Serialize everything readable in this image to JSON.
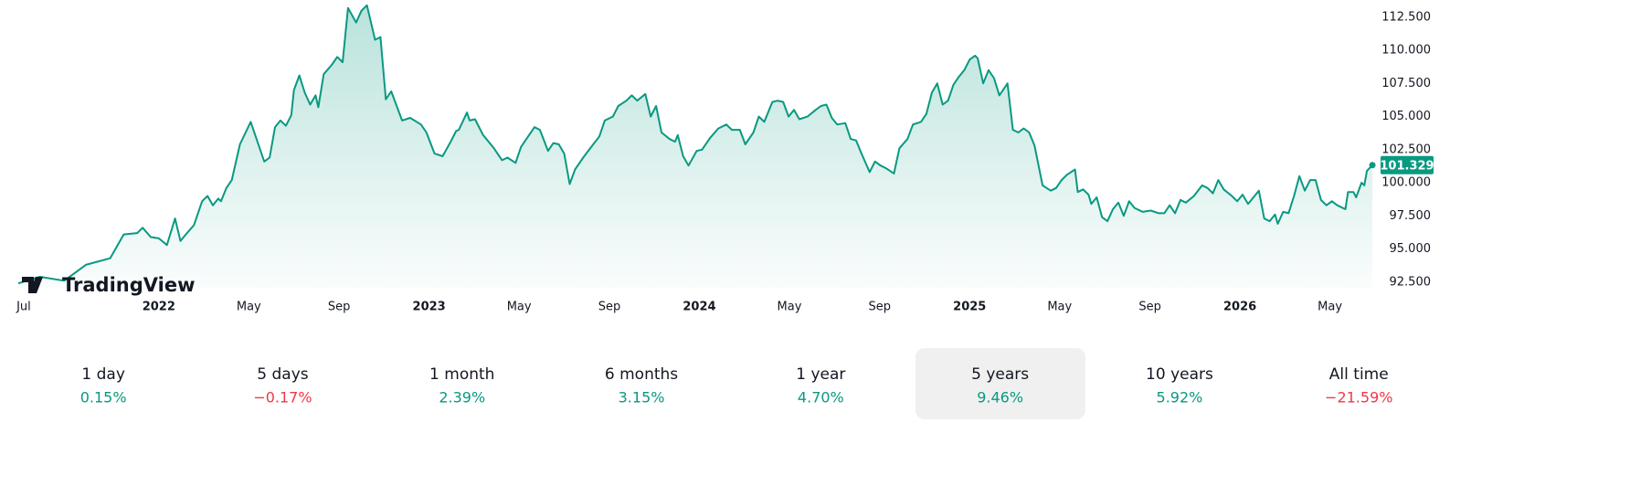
{
  "chart_data": {
    "type": "area",
    "logo": "TradingView",
    "xlim": [
      2021.48,
      2026.5
    ],
    "ylim": [
      92,
      113.8
    ],
    "grid": false,
    "xticks": [
      {
        "value": 2021.5,
        "label": "Jul"
      },
      2022,
      {
        "value": 2022.333,
        "label": "May"
      },
      {
        "value": 2022.667,
        "label": "Sep"
      },
      2023,
      {
        "value": 2023.333,
        "label": "May"
      },
      {
        "value": 2023.667,
        "label": "Sep"
      },
      2024,
      {
        "value": 2024.333,
        "label": "May"
      },
      {
        "value": 2024.667,
        "label": "Sep"
      },
      2025,
      {
        "value": 2025.333,
        "label": "May"
      },
      {
        "value": 2025.667,
        "label": "Sep"
      },
      2026,
      {
        "value": 2026.333,
        "label": "May"
      }
    ],
    "yticks": [
      {
        "value": 92.5,
        "label": "92.500"
      },
      {
        "value": 95,
        "label": "95.000"
      },
      {
        "value": 97.5,
        "label": "97.500"
      },
      {
        "value": 100,
        "label": "100.000"
      },
      {
        "value": 102.5,
        "label": "102.500"
      },
      {
        "value": 105,
        "label": "105.000"
      },
      {
        "value": 107.5,
        "label": "107.500"
      },
      {
        "value": 110,
        "label": "110.000"
      },
      {
        "value": 112.5,
        "label": "112.500"
      }
    ],
    "series": [
      {
        "color": "#089981",
        "x": [
          2021.48,
          2021.56,
          2021.65,
          2021.73,
          2021.82,
          2021.87,
          2021.92,
          2021.94,
          2021.97,
          2022,
          2022.03,
          2022.06,
          2022.08,
          2022.1,
          2022.13,
          2022.16,
          2022.18,
          2022.2,
          2022.22,
          2022.23,
          2022.25,
          2022.27,
          2022.3,
          2022.34,
          2022.39,
          2022.41,
          2022.43,
          2022.45,
          2022.47,
          2022.49,
          2022.5,
          2022.52,
          2022.54,
          2022.56,
          2022.58,
          2022.59,
          2022.61,
          2022.64,
          2022.66,
          2022.68,
          2022.7,
          2022.73,
          2022.75,
          2022.77,
          2022.8,
          2022.82,
          2022.84,
          2022.86,
          2022.9,
          2022.93,
          2022.97,
          2022.99,
          2023.02,
          2023.05,
          2023.08,
          2023.1,
          2023.11,
          2023.14,
          2023.15,
          2023.17,
          2023.2,
          2023.24,
          2023.27,
          2023.29,
          2023.32,
          2023.34,
          2023.36,
          2023.39,
          2023.41,
          2023.44,
          2023.46,
          2023.48,
          2023.5,
          2023.52,
          2023.54,
          2023.57,
          2023.6,
          2023.63,
          2023.65,
          2023.68,
          2023.7,
          2023.73,
          2023.75,
          2023.77,
          2023.8,
          2023.82,
          2023.84,
          2023.86,
          2023.89,
          2023.91,
          2023.92,
          2023.94,
          2023.96,
          2023.99,
          2024.01,
          2024.04,
          2024.07,
          2024.1,
          2024.12,
          2024.15,
          2024.17,
          2024.2,
          2024.22,
          2024.24,
          2024.27,
          2024.29,
          2024.31,
          2024.33,
          2024.35,
          2024.37,
          2024.4,
          2024.43,
          2024.45,
          2024.47,
          2024.49,
          2024.51,
          2024.54,
          2024.56,
          2024.58,
          2024.6,
          2024.63,
          2024.65,
          2024.67,
          2024.69,
          2024.72,
          2024.74,
          2024.77,
          2024.79,
          2024.82,
          2024.84,
          2024.86,
          2024.88,
          2024.9,
          2024.92,
          2024.94,
          2024.96,
          2024.98,
          2025,
          2025.02,
          2025.03,
          2025.05,
          2025.07,
          2025.09,
          2025.11,
          2025.14,
          2025.16,
          2025.18,
          2025.2,
          2025.22,
          2025.24,
          2025.27,
          2025.3,
          2025.32,
          2025.34,
          2025.36,
          2025.39,
          2025.4,
          2025.42,
          2025.44,
          2025.45,
          2025.47,
          2025.49,
          2025.51,
          2025.53,
          2025.55,
          2025.57,
          2025.59,
          2025.61,
          2025.64,
          2025.67,
          2025.7,
          2025.72,
          2025.74,
          2025.76,
          2025.78,
          2025.8,
          2025.83,
          2025.86,
          2025.88,
          2025.9,
          2025.92,
          2025.94,
          2025.97,
          2025.99,
          2026.01,
          2026.03,
          2026.05,
          2026.07,
          2026.09,
          2026.11,
          2026.13,
          2026.14,
          2026.16,
          2026.18,
          2026.2,
          2026.22,
          2026.24,
          2026.26,
          2026.28,
          2026.3,
          2026.32,
          2026.34,
          2026.36,
          2026.39,
          2026.4,
          2026.42,
          2026.43,
          2026.45,
          2026.46,
          2026.47,
          2026.49
        ],
        "values": [
          92.4,
          92.9,
          92.6,
          93.8,
          94.3,
          96.1,
          96.2,
          96.6,
          95.9,
          95.8,
          95.3,
          97.3,
          95.6,
          96.1,
          96.8,
          98.6,
          99.0,
          98.3,
          98.8,
          98.6,
          99.6,
          100.2,
          102.9,
          104.6,
          101.6,
          101.9,
          104.2,
          104.7,
          104.3,
          105.1,
          107.0,
          108.1,
          106.8,
          105.9,
          106.6,
          105.7,
          108.2,
          108.9,
          109.5,
          109.1,
          113.2,
          112.1,
          113.0,
          113.4,
          110.8,
          111.0,
          106.3,
          106.9,
          104.7,
          104.9,
          104.4,
          103.8,
          102.2,
          102.0,
          103.1,
          103.9,
          104.0,
          105.3,
          104.7,
          104.8,
          103.6,
          102.6,
          101.7,
          101.9,
          101.5,
          102.7,
          103.3,
          104.2,
          104.0,
          102.4,
          103.0,
          102.9,
          102.2,
          99.9,
          101.0,
          101.9,
          102.7,
          103.5,
          104.7,
          105.0,
          105.8,
          106.2,
          106.6,
          106.2,
          106.7,
          105.0,
          105.8,
          103.8,
          103.3,
          103.1,
          103.6,
          102.0,
          101.3,
          102.4,
          102.5,
          103.4,
          104.1,
          104.4,
          104.0,
          104.0,
          102.9,
          103.8,
          105.0,
          104.6,
          106.1,
          106.2,
          106.1,
          105.0,
          105.5,
          104.8,
          105.0,
          105.5,
          105.8,
          105.9,
          104.9,
          104.4,
          104.5,
          103.3,
          103.2,
          102.2,
          100.8,
          101.6,
          101.3,
          101.1,
          100.7,
          102.6,
          103.3,
          104.4,
          104.6,
          105.2,
          106.8,
          107.5,
          105.9,
          106.2,
          107.4,
          108.0,
          108.5,
          109.3,
          109.6,
          109.4,
          107.5,
          108.5,
          107.9,
          106.6,
          107.5,
          104.0,
          103.8,
          104.1,
          103.8,
          102.8,
          99.8,
          99.4,
          99.6,
          100.2,
          100.6,
          101.0,
          99.3,
          99.5,
          99.1,
          98.4,
          98.9,
          97.4,
          97.1,
          98.0,
          98.5,
          97.5,
          98.6,
          98.1,
          97.8,
          97.9,
          97.7,
          97.7,
          98.3,
          97.7,
          98.7,
          98.5,
          99.0,
          99.8,
          99.6,
          99.2,
          100.2,
          99.5,
          99.0,
          98.6,
          99.1,
          98.4,
          98.9,
          99.4,
          97.3,
          97.1,
          97.6,
          96.9,
          97.8,
          97.7,
          99.0,
          100.5,
          99.4,
          100.2,
          100.2,
          98.7,
          98.3,
          98.6,
          98.3,
          98.0,
          99.3,
          99.3,
          98.9,
          100.0,
          99.8,
          100.9,
          101.329
        ]
      }
    ]
  },
  "performance": {
    "selected": 5,
    "periods": [
      {
        "label": "1 day",
        "change": "0.15%",
        "color": "#089981"
      },
      {
        "label": "5 days",
        "change": "−0.17%",
        "color": "#f23645"
      },
      {
        "label": "1 month",
        "change": "2.39%",
        "color": "#089981"
      },
      {
        "label": "6 months",
        "change": "3.15%",
        "color": "#089981"
      },
      {
        "label": "1 year",
        "change": "4.70%",
        "color": "#089981"
      },
      {
        "label": "5 years",
        "change": "9.46%",
        "color": "#089981"
      },
      {
        "label": "10 years",
        "change": "5.92%",
        "color": "#089981"
      },
      {
        "label": "All time",
        "change": "−21.59%",
        "color": "#f23645"
      }
    ]
  }
}
